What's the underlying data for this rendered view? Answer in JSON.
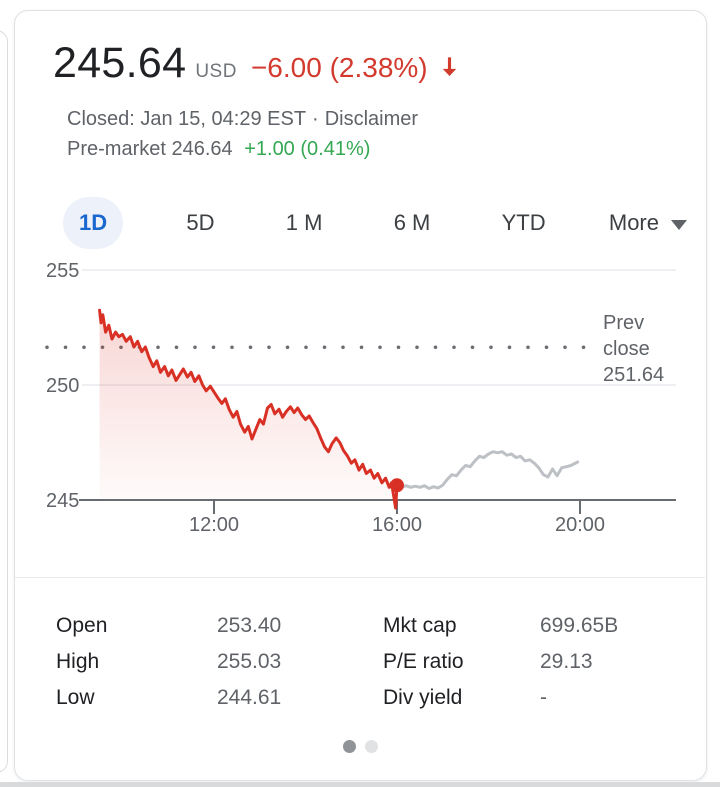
{
  "header": {
    "price": "245.64",
    "currency": "USD",
    "change": "−6.00 (2.38%)",
    "status_prefix": "Closed: Jan 15, 04:29 EST",
    "separator": "·",
    "disclaimer_label": "Disclaimer",
    "premarket_text": "Pre-market 246.64",
    "premarket_change": "+1.00 (0.41%)"
  },
  "tabs": [
    {
      "label": "1D",
      "active": true
    },
    {
      "label": "5D",
      "active": false
    },
    {
      "label": "1 M",
      "active": false
    },
    {
      "label": "6 M",
      "active": false
    },
    {
      "label": "YTD",
      "active": false
    }
  ],
  "more": {
    "label": "More"
  },
  "colors": {
    "negative_red": "#d23a2e",
    "line_red": "#d93025",
    "positive_green": "#34a853",
    "after_hours_gray": "#bdc1c6",
    "axis_gray": "#696c70",
    "grid_light": "#e8eaed",
    "label_gray": "#5f6368",
    "active_tab_blue": "#1a67cf",
    "active_tab_bg": "#edf2fa"
  },
  "chart_data": {
    "type": "line",
    "title": "1D intraday price chart",
    "x_unit": "hour_of_day",
    "x_ticks": [
      {
        "t": 12,
        "label": "12:00"
      },
      {
        "t": 16,
        "label": "16:00"
      },
      {
        "t": 20,
        "label": "20:00"
      }
    ],
    "y_ticks": [
      245,
      250,
      255
    ],
    "ylim": [
      244.4,
      255.6
    ],
    "xlim": [
      9.0,
      22.1
    ],
    "grid": true,
    "prev_close": {
      "value": 251.64,
      "label_lines": [
        "Prev",
        "close",
        "251.64"
      ]
    },
    "last_trade": {
      "t": 16.0,
      "price": 245.64
    },
    "series": [
      {
        "name": "regular-hours",
        "color": "#d93025",
        "fill": true,
        "points": [
          [
            9.5,
            253.25
          ],
          [
            9.53,
            252.7
          ],
          [
            9.57,
            253.05
          ],
          [
            9.63,
            252.3
          ],
          [
            9.7,
            252.6
          ],
          [
            9.77,
            252.0
          ],
          [
            9.85,
            252.3
          ],
          [
            9.92,
            252.1
          ],
          [
            10.0,
            252.2
          ],
          [
            10.08,
            251.9
          ],
          [
            10.17,
            252.1
          ],
          [
            10.25,
            251.65
          ],
          [
            10.33,
            251.9
          ],
          [
            10.42,
            251.45
          ],
          [
            10.5,
            251.65
          ],
          [
            10.58,
            251.2
          ],
          [
            10.67,
            250.8
          ],
          [
            10.75,
            251.05
          ],
          [
            10.83,
            250.55
          ],
          [
            10.92,
            250.8
          ],
          [
            11.0,
            250.4
          ],
          [
            11.08,
            250.65
          ],
          [
            11.17,
            250.2
          ],
          [
            11.25,
            250.45
          ],
          [
            11.33,
            250.7
          ],
          [
            11.42,
            250.35
          ],
          [
            11.5,
            250.55
          ],
          [
            11.58,
            250.15
          ],
          [
            11.67,
            250.4
          ],
          [
            11.75,
            250.0
          ],
          [
            11.83,
            249.75
          ],
          [
            11.92,
            249.95
          ],
          [
            12.0,
            249.7
          ],
          [
            12.08,
            249.45
          ],
          [
            12.17,
            249.2
          ],
          [
            12.25,
            249.4
          ],
          [
            12.33,
            248.95
          ],
          [
            12.42,
            248.6
          ],
          [
            12.5,
            248.85
          ],
          [
            12.58,
            248.3
          ],
          [
            12.67,
            247.95
          ],
          [
            12.75,
            248.2
          ],
          [
            12.83,
            247.65
          ],
          [
            12.92,
            248.1
          ],
          [
            13.0,
            248.5
          ],
          [
            13.08,
            248.3
          ],
          [
            13.17,
            249.0
          ],
          [
            13.25,
            249.15
          ],
          [
            13.33,
            248.75
          ],
          [
            13.42,
            248.95
          ],
          [
            13.5,
            248.6
          ],
          [
            13.58,
            248.85
          ],
          [
            13.67,
            249.05
          ],
          [
            13.75,
            248.8
          ],
          [
            13.83,
            249.0
          ],
          [
            13.92,
            248.7
          ],
          [
            14.0,
            248.5
          ],
          [
            14.08,
            248.65
          ],
          [
            14.17,
            248.35
          ],
          [
            14.25,
            248.1
          ],
          [
            14.33,
            247.7
          ],
          [
            14.42,
            247.3
          ],
          [
            14.5,
            247.1
          ],
          [
            14.58,
            247.45
          ],
          [
            14.67,
            247.7
          ],
          [
            14.75,
            247.5
          ],
          [
            14.83,
            247.15
          ],
          [
            14.92,
            246.9
          ],
          [
            15.0,
            246.6
          ],
          [
            15.08,
            246.75
          ],
          [
            15.17,
            246.3
          ],
          [
            15.25,
            246.55
          ],
          [
            15.33,
            246.15
          ],
          [
            15.42,
            246.3
          ],
          [
            15.5,
            245.95
          ],
          [
            15.58,
            246.15
          ],
          [
            15.67,
            245.75
          ],
          [
            15.75,
            245.95
          ],
          [
            15.83,
            245.55
          ],
          [
            15.88,
            245.75
          ],
          [
            15.93,
            245.15
          ],
          [
            15.97,
            244.65
          ],
          [
            16.0,
            245.64
          ]
        ]
      },
      {
        "name": "after-hours",
        "color": "#bdc1c6",
        "fill": false,
        "points": [
          [
            16.0,
            245.6
          ],
          [
            16.1,
            245.55
          ],
          [
            16.2,
            245.62
          ],
          [
            16.3,
            245.55
          ],
          [
            16.4,
            245.6
          ],
          [
            16.5,
            245.55
          ],
          [
            16.6,
            245.62
          ],
          [
            16.7,
            245.5
          ],
          [
            16.8,
            245.58
          ],
          [
            16.9,
            245.52
          ],
          [
            17.0,
            245.65
          ],
          [
            17.1,
            245.9
          ],
          [
            17.2,
            246.1
          ],
          [
            17.3,
            246.05
          ],
          [
            17.4,
            246.3
          ],
          [
            17.5,
            246.5
          ],
          [
            17.6,
            246.45
          ],
          [
            17.7,
            246.7
          ],
          [
            17.8,
            246.9
          ],
          [
            17.9,
            246.85
          ],
          [
            18.0,
            247.0
          ],
          [
            18.1,
            247.1
          ],
          [
            18.2,
            247.05
          ],
          [
            18.3,
            247.1
          ],
          [
            18.4,
            246.95
          ],
          [
            18.5,
            247.0
          ],
          [
            18.6,
            246.85
          ],
          [
            18.7,
            246.9
          ],
          [
            18.8,
            246.7
          ],
          [
            18.9,
            246.75
          ],
          [
            19.0,
            246.6
          ],
          [
            19.1,
            246.4
          ],
          [
            19.2,
            246.1
          ],
          [
            19.3,
            246.0
          ],
          [
            19.4,
            246.35
          ],
          [
            19.5,
            246.05
          ],
          [
            19.6,
            246.4
          ],
          [
            19.7,
            246.45
          ],
          [
            19.8,
            246.5
          ],
          [
            19.95,
            246.65
          ]
        ]
      }
    ]
  },
  "stats": {
    "rows": [
      {
        "label": "Open",
        "value": "253.40",
        "label2": "Mkt cap",
        "value2": "699.65B"
      },
      {
        "label": "High",
        "value": "255.03",
        "label2": "P/E ratio",
        "value2": "29.13"
      },
      {
        "label": "Low",
        "value": "244.61",
        "label2": "Div yield",
        "value2": "-"
      }
    ]
  },
  "pagination": {
    "count": 2,
    "active_index": 0
  }
}
